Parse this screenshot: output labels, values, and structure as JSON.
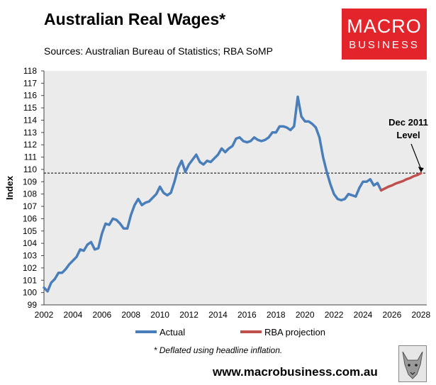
{
  "header": {
    "title": "Australian Real Wages*",
    "subtitle": "Sources: Australian Bureau of Statistics; RBA SoMP"
  },
  "logo": {
    "line1": "MACRO",
    "line2": "BUSINESS",
    "color": "#e4242b"
  },
  "footer": {
    "footnote": "* Deflated using headline inflation.",
    "website": "www.macrobusiness.com.au",
    "mascot_icon": "wolf-icon"
  },
  "chart_data": {
    "type": "line",
    "ylabel": "Index",
    "xlabel": "",
    "xlim": [
      2002,
      2028.4
    ],
    "ylim": [
      99,
      118
    ],
    "x_ticks": [
      2002,
      2004,
      2006,
      2008,
      2010,
      2012,
      2014,
      2016,
      2018,
      2020,
      2022,
      2024,
      2026,
      2028
    ],
    "y_ticks": [
      99,
      100,
      101,
      102,
      103,
      104,
      105,
      106,
      107,
      108,
      109,
      110,
      111,
      112,
      113,
      114,
      115,
      116,
      117,
      118
    ],
    "grid": false,
    "plot_background": "#ebebeb",
    "legend_position": "bottom",
    "series": [
      {
        "name": "Actual",
        "color": "#4a7ebb",
        "x": [
          2002.0,
          2002.25,
          2002.5,
          2002.75,
          2003.0,
          2003.25,
          2003.5,
          2003.75,
          2004.0,
          2004.25,
          2004.5,
          2004.75,
          2005.0,
          2005.25,
          2005.5,
          2005.75,
          2006.0,
          2006.25,
          2006.5,
          2006.75,
          2007.0,
          2007.25,
          2007.5,
          2007.75,
          2008.0,
          2008.25,
          2008.5,
          2008.75,
          2009.0,
          2009.25,
          2009.5,
          2009.75,
          2010.0,
          2010.25,
          2010.5,
          2010.75,
          2011.0,
          2011.25,
          2011.5,
          2011.75,
          2012.0,
          2012.25,
          2012.5,
          2012.75,
          2013.0,
          2013.25,
          2013.5,
          2013.75,
          2014.0,
          2014.25,
          2014.5,
          2014.75,
          2015.0,
          2015.25,
          2015.5,
          2015.75,
          2016.0,
          2016.25,
          2016.5,
          2016.75,
          2017.0,
          2017.25,
          2017.5,
          2017.75,
          2018.0,
          2018.25,
          2018.5,
          2018.75,
          2019.0,
          2019.25,
          2019.5,
          2019.75,
          2020.0,
          2020.25,
          2020.5,
          2020.75,
          2021.0,
          2021.25,
          2021.5,
          2021.75,
          2022.0,
          2022.25,
          2022.5,
          2022.75,
          2023.0,
          2023.25,
          2023.5,
          2023.75,
          2024.0,
          2024.25,
          2024.5,
          2024.75,
          2025.0,
          2025.25
        ],
        "values": [
          100.4,
          100.1,
          100.8,
          101.1,
          101.6,
          101.6,
          101.9,
          102.3,
          102.6,
          102.9,
          103.5,
          103.4,
          103.9,
          104.1,
          103.5,
          103.6,
          104.8,
          105.6,
          105.5,
          106.0,
          105.9,
          105.6,
          105.2,
          105.2,
          106.3,
          107.1,
          107.6,
          107.1,
          107.3,
          107.4,
          107.7,
          108.0,
          108.6,
          108.1,
          107.9,
          108.1,
          109.0,
          110.1,
          110.7,
          109.8,
          110.4,
          110.8,
          111.2,
          110.6,
          110.4,
          110.7,
          110.6,
          110.9,
          111.2,
          111.7,
          111.4,
          111.7,
          111.9,
          112.5,
          112.6,
          112.3,
          112.2,
          112.3,
          112.6,
          112.4,
          112.3,
          112.4,
          112.6,
          113.0,
          113.0,
          113.5,
          113.5,
          113.4,
          113.2,
          113.5,
          115.9,
          114.3,
          113.9,
          113.9,
          113.7,
          113.4,
          112.6,
          111.0,
          109.8,
          108.8,
          108.0,
          107.6,
          107.5,
          107.6,
          108.0,
          107.9,
          107.8,
          108.5,
          109.0,
          109.0,
          109.2,
          108.7,
          108.9,
          108.3
        ]
      },
      {
        "name": "RBA projection",
        "color": "#c0504d",
        "x": [
          2025.25,
          2025.5,
          2025.75,
          2026.0,
          2026.25,
          2026.5,
          2026.75,
          2027.0,
          2027.25,
          2027.5,
          2027.75,
          2028.0
        ],
        "values": [
          108.3,
          108.45,
          108.6,
          108.7,
          108.85,
          108.95,
          109.05,
          109.2,
          109.3,
          109.45,
          109.55,
          109.7
        ]
      }
    ],
    "reference_line": {
      "value": 109.7,
      "style": "dashed",
      "color": "#000000"
    },
    "annotation": {
      "line1": "Dec 2011",
      "line2": "Level",
      "x": 2028.0,
      "y": 109.7
    }
  }
}
